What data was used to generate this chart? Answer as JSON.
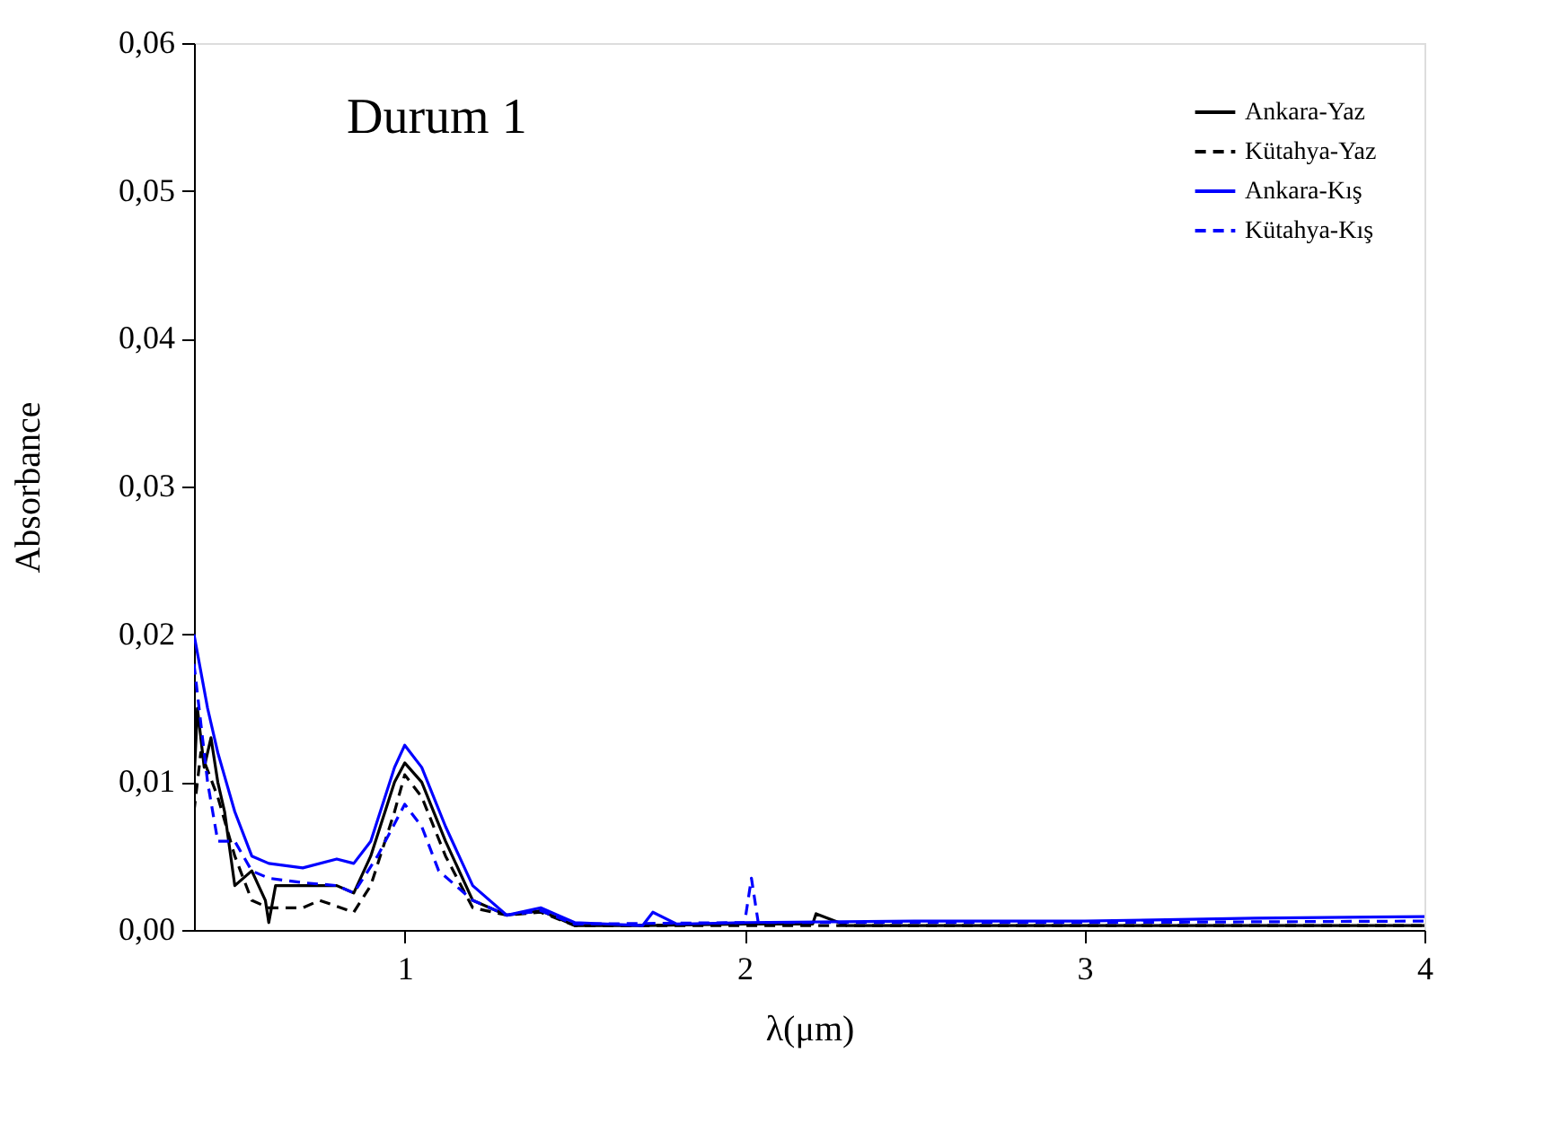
{
  "chart_data": {
    "type": "line",
    "xlabel": "λ(μm)",
    "ylabel": "Absorbance",
    "annotations": [
      "Durum 1"
    ],
    "xlim": [
      0.38,
      4
    ],
    "ylim": [
      0,
      0.06
    ],
    "xticks": [
      1,
      2,
      3,
      4
    ],
    "yticks": [
      {
        "value": 0,
        "label": "0,00"
      },
      {
        "value": 0.01,
        "label": "0,01"
      },
      {
        "value": 0.02,
        "label": "0,02"
      },
      {
        "value": 0.03,
        "label": "0,03"
      },
      {
        "value": 0.04,
        "label": "0,04"
      },
      {
        "value": 0.05,
        "label": "0,05"
      },
      {
        "value": 0.06,
        "label": "0,06"
      }
    ],
    "grid": false,
    "legend": "top right",
    "marker": "none",
    "series": [
      {
        "name": "Ankara-Yaz",
        "color": "#000000",
        "line_style": "solid",
        "x": [
          0.38,
          0.39,
          0.41,
          0.43,
          0.45,
          0.47,
          0.5,
          0.55,
          0.59,
          0.6,
          0.62,
          0.7,
          0.8,
          0.85,
          0.9,
          0.97,
          1.0,
          1.05,
          1.12,
          1.2,
          1.3,
          1.4,
          1.5,
          1.7,
          2.0,
          2.2,
          2.21,
          2.3,
          3.0,
          4.0
        ],
        "values": [
          0.01,
          0.015,
          0.011,
          0.013,
          0.01,
          0.008,
          0.003,
          0.004,
          0.002,
          0.0005,
          0.003,
          0.003,
          0.003,
          0.0025,
          0.005,
          0.01,
          0.0113,
          0.01,
          0.006,
          0.002,
          0.001,
          0.0013,
          0.0003,
          0.0003,
          0.0004,
          0.0004,
          0.0011,
          0.0003,
          0.0003,
          0.0003
        ]
      },
      {
        "name": "Kütahya-Yaz",
        "color": "#000000",
        "line_style": "dashed",
        "x": [
          0.38,
          0.4,
          0.45,
          0.5,
          0.55,
          0.6,
          0.7,
          0.75,
          0.85,
          0.9,
          0.97,
          1.0,
          1.05,
          1.12,
          1.2,
          1.3,
          1.4,
          1.5,
          2.0,
          3.0,
          4.0
        ],
        "values": [
          0.008,
          0.012,
          0.009,
          0.005,
          0.002,
          0.0015,
          0.0015,
          0.002,
          0.0012,
          0.003,
          0.008,
          0.0105,
          0.009,
          0.005,
          0.0015,
          0.001,
          0.0012,
          0.0003,
          0.0003,
          0.0003,
          0.0003
        ]
      },
      {
        "name": "Ankara-Kış",
        "color": "#0000ff",
        "line_style": "solid",
        "x": [
          0.38,
          0.42,
          0.45,
          0.5,
          0.55,
          0.6,
          0.7,
          0.8,
          0.85,
          0.9,
          0.97,
          1.0,
          1.05,
          1.12,
          1.2,
          1.3,
          1.4,
          1.5,
          1.7,
          1.73,
          1.8,
          2.0,
          2.5,
          3.0,
          3.5,
          4.0
        ],
        "values": [
          0.02,
          0.015,
          0.012,
          0.008,
          0.005,
          0.0045,
          0.0042,
          0.0048,
          0.0045,
          0.006,
          0.011,
          0.0125,
          0.011,
          0.007,
          0.003,
          0.001,
          0.0015,
          0.0005,
          0.0003,
          0.0012,
          0.0004,
          0.0005,
          0.0006,
          0.0006,
          0.0008,
          0.0009
        ]
      },
      {
        "name": "Kütahya-Kış",
        "color": "#0000ff",
        "line_style": "dashed",
        "x": [
          0.38,
          0.42,
          0.45,
          0.5,
          0.55,
          0.6,
          0.7,
          0.8,
          0.85,
          0.92,
          1.0,
          1.05,
          1.1,
          1.2,
          1.3,
          1.4,
          1.5,
          2.0,
          2.02,
          2.04,
          2.5,
          3.0,
          4.0
        ],
        "values": [
          0.018,
          0.01,
          0.006,
          0.006,
          0.004,
          0.0035,
          0.0032,
          0.003,
          0.0025,
          0.005,
          0.0085,
          0.007,
          0.004,
          0.002,
          0.001,
          0.0013,
          0.0004,
          0.0005,
          0.0035,
          0.0005,
          0.0005,
          0.0005,
          0.0006
        ]
      }
    ]
  }
}
